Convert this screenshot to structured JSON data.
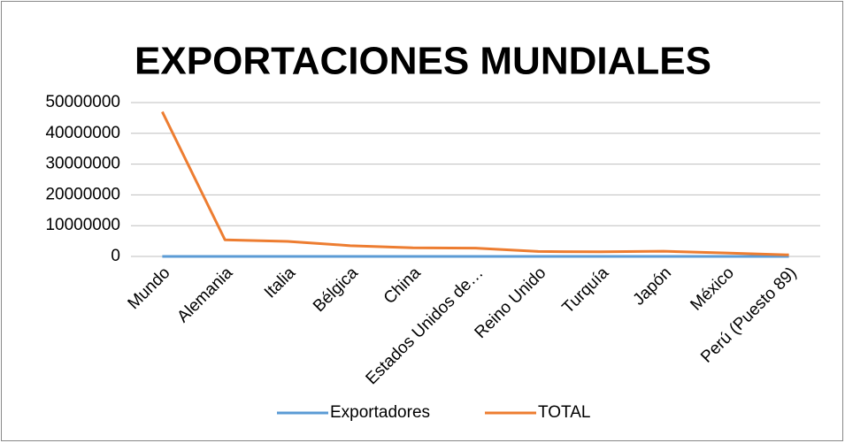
{
  "chart_data": {
    "type": "line",
    "title": "EXPORTACIONES MUNDIALES",
    "categories": [
      "Mundo",
      "Alemania",
      "Italia",
      "Bélgica",
      "China",
      "Estados Unidos de…",
      "Reino Unido",
      "Turquía",
      "Japón",
      "México",
      "Perú (Puesto 89)"
    ],
    "series": [
      {
        "name": "Exportadores",
        "color": "#5b9bd5",
        "values": [
          0,
          0,
          0,
          0,
          0,
          0,
          0,
          0,
          0,
          0,
          0
        ]
      },
      {
        "name": "TOTAL",
        "color": "#ed7d31",
        "values": [
          47000000,
          5400000,
          4900000,
          3500000,
          2800000,
          2700000,
          1600000,
          1500000,
          1700000,
          1100000,
          500000
        ]
      }
    ],
    "ylim": [
      0,
      50000000
    ],
    "yticks": [
      0,
      10000000,
      20000000,
      30000000,
      40000000,
      50000000
    ],
    "grid": true,
    "legend": "bottom"
  }
}
